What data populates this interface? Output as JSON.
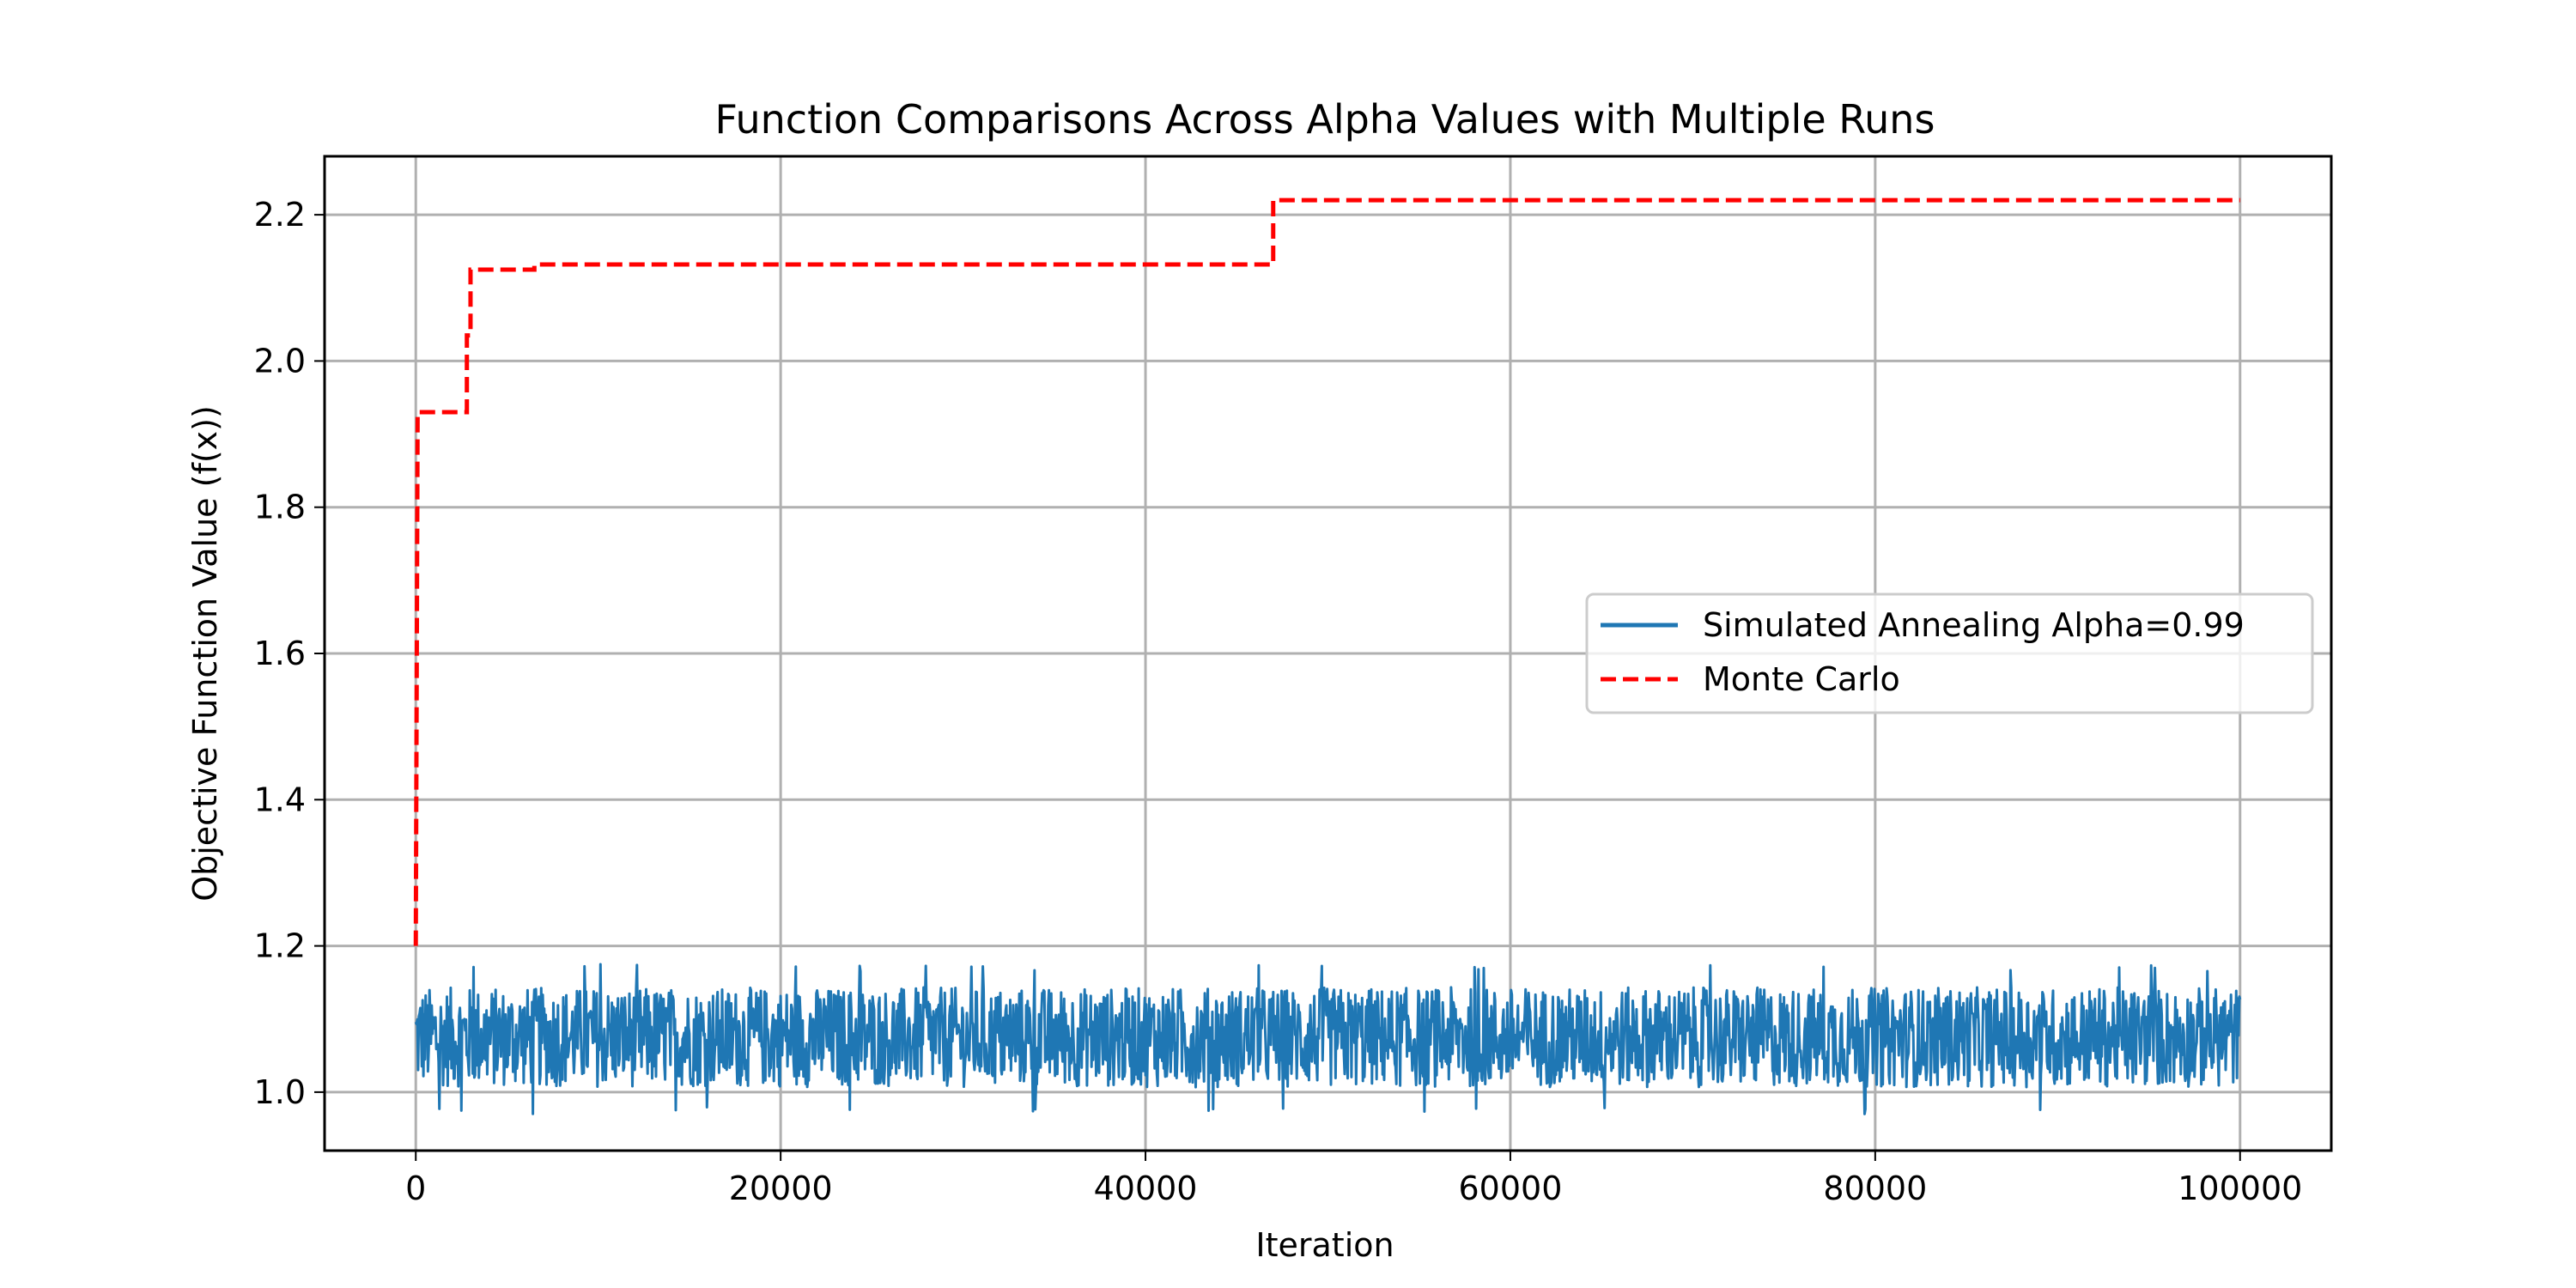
{
  "chart_data": {
    "type": "line",
    "title": "Function Comparisons Across Alpha Values with Multiple Runs",
    "xlabel": "Iteration",
    "ylabel": "Objective Function Value (f(x))",
    "xlim": [
      -5000,
      105000
    ],
    "ylim": [
      0.92,
      2.28
    ],
    "xticks": [
      0,
      20000,
      40000,
      60000,
      80000,
      100000
    ],
    "xtick_labels": [
      "0",
      "20000",
      "40000",
      "60000",
      "80000",
      "100000"
    ],
    "yticks": [
      1.0,
      1.2,
      1.4,
      1.6,
      1.8,
      2.0,
      2.2
    ],
    "ytick_labels": [
      "1.0",
      "1.2",
      "1.4",
      "1.6",
      "1.8",
      "2.0",
      "2.2"
    ],
    "grid": true,
    "legend_position": "center-right",
    "series": [
      {
        "name": "Simulated Annealing Alpha=0.99",
        "style": "solid",
        "color": "#1f77b4",
        "x": [
          0,
          100000
        ],
        "y_center": 1.075,
        "y_band": [
          1.01,
          1.14
        ],
        "y_extremes": [
          0.98,
          1.175
        ]
      },
      {
        "name": "Monte Carlo",
        "style": "dashed",
        "color": "#ff0000",
        "x": [
          0,
          100,
          2600,
          2800,
          3000,
          6500,
          47000,
          100000
        ],
        "y": [
          1.2,
          1.93,
          1.93,
          2.035,
          2.125,
          2.132,
          2.22,
          2.22
        ]
      }
    ]
  }
}
